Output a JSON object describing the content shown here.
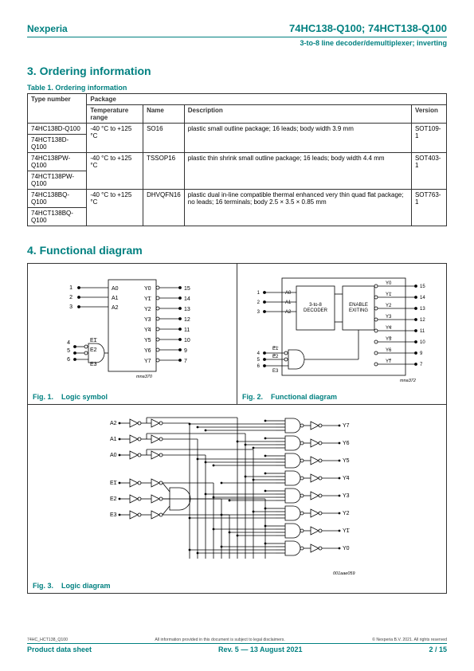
{
  "header": {
    "brand": "Nexperia",
    "part": "74HC138-Q100; 74HCT138-Q100",
    "subtitle": "3-to-8 line decoder/demultiplexer; inverting"
  },
  "section3": {
    "title": "3.  Ordering information"
  },
  "table1": {
    "caption": "Table 1. Ordering information",
    "headers": {
      "type": "Type number",
      "package": "Package",
      "temp": "Temperature range",
      "name": "Name",
      "desc": "Description",
      "version": "Version"
    },
    "rows": {
      "r1a": "74HC138D-Q100",
      "r1b": "74HCT138D-Q100",
      "r1_temp": "-40 °C to +125 °C",
      "r1_name": "SO16",
      "r1_desc": "plastic small outline package; 16 leads; body width 3.9 mm",
      "r1_ver": "SOT109-1",
      "r2a": "74HC138PW-Q100",
      "r2b": "74HCT138PW-Q100",
      "r2_temp": "-40 °C to +125 °C",
      "r2_name": "TSSOP16",
      "r2_desc": "plastic thin shrink small outline package; 16 leads; body width 4.4 mm",
      "r2_ver": "SOT403-1",
      "r3a": "74HC138BQ-Q100",
      "r3b": "74HCT138BQ-Q100",
      "r3_temp": "-40 °C to +125 °C",
      "r3_name": "DHVQFN16",
      "r3_desc": "plastic dual in-line compatible thermal enhanced very thin quad flat package; no leads; 16 terminals; body 2.5 × 3.5 × 0.85 mm",
      "r3_ver": "SOT763-1"
    }
  },
  "section4": {
    "title": "4.  Functional diagram"
  },
  "fig1": {
    "num": "Fig. 1.",
    "title": "Logic symbol",
    "ref": "mna370"
  },
  "fig2": {
    "num": "Fig. 2.",
    "title": "Functional diagram",
    "ref": "mna372"
  },
  "fig3": {
    "num": "Fig. 3.",
    "title": "Logic diagram",
    "ref": "001aae059"
  },
  "pins": {
    "a0": "A0",
    "a1": "A1",
    "a2": "A2",
    "e1": "E1",
    "e2": "E2",
    "e3": "E3",
    "y0": "Y0",
    "y1": "Y1",
    "y2": "Y2",
    "y3": "Y3",
    "y4": "Y4",
    "y5": "Y5",
    "y6": "Y6",
    "y7": "Y7",
    "p1": "1",
    "p2": "2",
    "p3": "3",
    "p4": "4",
    "p5": "5",
    "p6": "6",
    "p7": "7",
    "p8": "8",
    "p9": "9",
    "p10": "10",
    "p11": "11",
    "p12": "12",
    "p13": "13",
    "p14": "14",
    "p15": "15"
  },
  "blocks": {
    "decoder": "3-to-8\nDECODER",
    "enable": "ENABLE\nEXITING"
  },
  "footer": {
    "doc": "74HC_HCT138_Q100",
    "disclaimer": "All information provided in this document is subject to legal disclaimers.",
    "copyright": "© Nexperia B.V. 2021. All rights reserved",
    "left": "Product data sheet",
    "center": "Rev. 5 — 13 August 2021",
    "right": "2 / 15"
  },
  "style": {
    "teal": "#008080",
    "border": "#333333",
    "font_sizes": {
      "brand": 12,
      "part": 13,
      "section": 14,
      "table_caption": 9,
      "table_body": 8,
      "fig": 9,
      "footer": 9,
      "footnote": 5.2
    }
  }
}
